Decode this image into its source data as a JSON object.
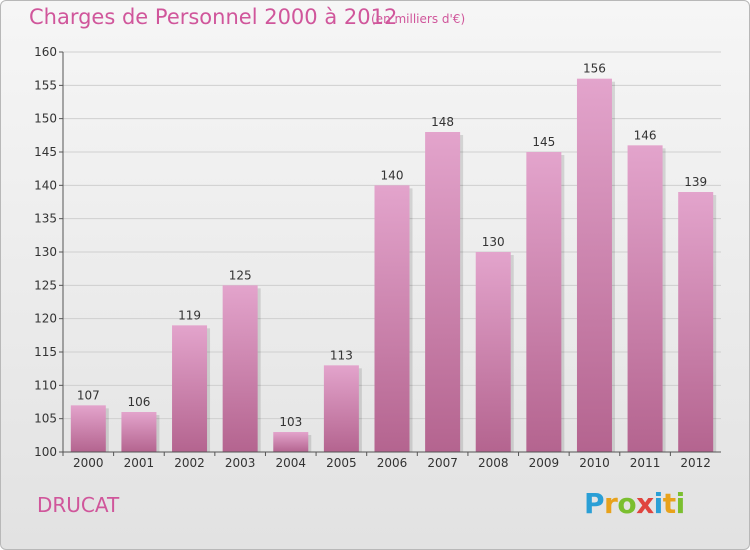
{
  "title": "Charges de Personnel 2000 à 2012",
  "subtitle": "(en milliers d'€)",
  "commune": "DRUCAT",
  "logo": {
    "letters": [
      "P",
      "r",
      "o",
      "x",
      "i",
      "t",
      "i"
    ],
    "colors": [
      "#2a9fd6",
      "#e8a21b",
      "#7bbf2f",
      "#e0443e",
      "#2a9fd6",
      "#e8a21b",
      "#7bbf2f"
    ]
  },
  "colors": {
    "bar_top": "#e3a4cc",
    "bar_bottom": "#b4648f",
    "title": "#d0569b"
  },
  "chart_data": {
    "type": "bar",
    "categories": [
      "2000",
      "2001",
      "2002",
      "2003",
      "2004",
      "2005",
      "2006",
      "2007",
      "2008",
      "2009",
      "2010",
      "2011",
      "2012"
    ],
    "values": [
      107,
      106,
      119,
      125,
      103,
      113,
      140,
      148,
      130,
      145,
      156,
      146,
      139
    ],
    "ylim": [
      100,
      160
    ],
    "yticks": [
      100,
      105,
      110,
      115,
      120,
      125,
      130,
      135,
      140,
      145,
      150,
      155,
      160
    ],
    "grid": true
  }
}
